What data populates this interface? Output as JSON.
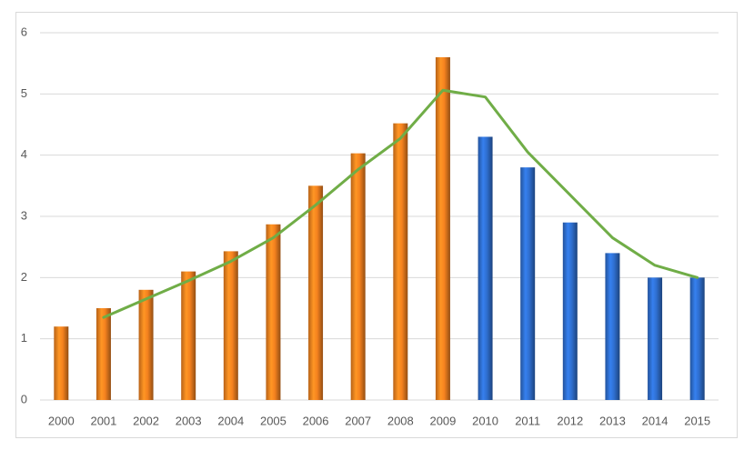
{
  "chart_data": {
    "type": "bar",
    "categories": [
      "2000",
      "2001",
      "2002",
      "2003",
      "2004",
      "2005",
      "2006",
      "2007",
      "2008",
      "2009",
      "2010",
      "2011",
      "2012",
      "2013",
      "2014",
      "2015"
    ],
    "values": [
      1.2,
      1.5,
      1.8,
      2.1,
      2.43,
      2.87,
      3.5,
      4.03,
      4.52,
      5.6,
      4.3,
      3.8,
      2.9,
      2.4,
      2.0,
      2.0
    ],
    "colors": [
      "#f5821f",
      "#f5821f",
      "#f5821f",
      "#f5821f",
      "#f5821f",
      "#f5821f",
      "#f5821f",
      "#f5821f",
      "#f5821f",
      "#f5821f",
      "#2f6fd0",
      "#2f6fd0",
      "#2f6fd0",
      "#2f6fd0",
      "#2f6fd0",
      "#2f6fd0"
    ],
    "line": {
      "color": "#70ad47",
      "values": [
        null,
        1.35,
        1.65,
        1.95,
        2.265,
        2.65,
        3.185,
        3.765,
        4.275,
        5.06,
        4.95,
        4.05,
        3.35,
        2.65,
        2.2,
        2.0
      ]
    },
    "ylim": [
      0,
      6
    ],
    "yticks": [
      0,
      1,
      2,
      3,
      4,
      5,
      6
    ],
    "grid": true
  }
}
